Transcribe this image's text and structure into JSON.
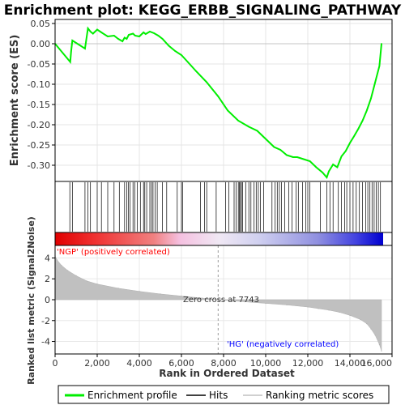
{
  "chart_data": {
    "type": "line",
    "title": "Enrichment plot: KEGG_ERBB_SIGNALING_PATHWAY",
    "top_panel": {
      "ylabel": "Enrichment score (ES)",
      "ylim": [
        -0.34,
        0.06
      ],
      "yticks": [
        0.05,
        0.0,
        -0.05,
        -0.1,
        -0.15,
        -0.2,
        -0.25,
        -0.3
      ],
      "ytick_labels": [
        "0.05",
        "0.00",
        "-0.05",
        "-0.10",
        "-0.15",
        "-0.20",
        "-0.25",
        "-0.30"
      ],
      "grid": true,
      "series": [
        {
          "name": "Enrichment profile",
          "color": "#00ee00",
          "x": [
            0,
            720,
            760,
            820,
            1420,
            1560,
            1680,
            1800,
            2000,
            2200,
            2500,
            2800,
            3000,
            3200,
            3300,
            3400,
            3500,
            3700,
            3800,
            4000,
            4200,
            4300,
            4500,
            4700,
            4900,
            5100,
            5400,
            5700,
            6000,
            6300,
            6700,
            7200,
            7743,
            8200,
            8700,
            9200,
            9600,
            10000,
            10400,
            10700,
            11000,
            11300,
            11500,
            11800,
            12100,
            12400,
            12700,
            12900,
            13000,
            13200,
            13400,
            13600,
            13800,
            14000,
            14200,
            14400,
            14600,
            14800,
            15000,
            15200,
            15400,
            15500
          ],
          "y": [
            0.0,
            -0.045,
            -0.02,
            0.008,
            -0.012,
            0.038,
            0.03,
            0.025,
            0.035,
            0.028,
            0.018,
            0.02,
            0.012,
            0.006,
            0.015,
            0.012,
            0.022,
            0.025,
            0.02,
            0.018,
            0.028,
            0.024,
            0.03,
            0.026,
            0.02,
            0.012,
            -0.005,
            -0.018,
            -0.028,
            -0.045,
            -0.068,
            -0.095,
            -0.13,
            -0.165,
            -0.19,
            -0.205,
            -0.215,
            -0.235,
            -0.255,
            -0.262,
            -0.275,
            -0.28,
            -0.28,
            -0.285,
            -0.29,
            -0.305,
            -0.318,
            -0.33,
            -0.315,
            -0.298,
            -0.305,
            -0.278,
            -0.265,
            -0.245,
            -0.228,
            -0.21,
            -0.19,
            -0.165,
            -0.135,
            -0.095,
            -0.055,
            0.0
          ]
        }
      ]
    },
    "hits_panel": {
      "name": "Hits",
      "hit_ranks": [
        700,
        820,
        1420,
        1560,
        1680,
        2000,
        2200,
        2500,
        2800,
        3050,
        3300,
        3400,
        3480,
        3560,
        3700,
        3780,
        3900,
        4050,
        4200,
        4260,
        4350,
        4500,
        4580,
        4650,
        4750,
        4850,
        5100,
        5300,
        5800,
        6000,
        6050,
        6900,
        7100,
        7200,
        7650,
        8100,
        8250,
        8500,
        8600,
        8700,
        8750,
        8800,
        8850,
        8900,
        9050,
        9200,
        9300,
        9450,
        9550,
        9650,
        9750,
        9900,
        10300,
        10450,
        10550,
        10650,
        10750,
        10900,
        11100,
        11250,
        11450,
        11550,
        11750,
        11900,
        12000,
        12100,
        12600,
        12900,
        13050,
        13200,
        13450,
        13600,
        13750,
        13850,
        14000,
        14150,
        14300,
        14450,
        14600,
        14750,
        14850,
        14950,
        15050,
        15150,
        15250,
        15350,
        15450
      ]
    },
    "color_bar": {
      "range": [
        0,
        15500
      ],
      "ngp_label": "'NGP' (positively correlated)",
      "hg_label": "'HG' (negatively correlated)",
      "ngp_color": "#ff0000",
      "hg_color": "#0000ff"
    },
    "metric_panel": {
      "ylabel": "Ranked list metric (Signal2Noise)",
      "ylim": [
        -5.2,
        5.2
      ],
      "yticks": [
        4,
        2,
        0,
        -2,
        -4
      ],
      "ytick_labels": [
        "4",
        "2",
        "0",
        "-2",
        "-4"
      ],
      "zero_cross_label": "Zero cross at 7743",
      "zero_cross": 7743,
      "fill_color": "#c0c0c0",
      "x": [
        0,
        100,
        300,
        600,
        1000,
        1500,
        2000,
        3000,
        4000,
        5000,
        6000,
        7000,
        7743,
        9000,
        10000,
        11000,
        12000,
        12500,
        13000,
        13500,
        14000,
        14500,
        14800,
        15000,
        15200,
        15400,
        15500
      ],
      "values": [
        4.2,
        3.8,
        3.3,
        2.8,
        2.3,
        1.8,
        1.5,
        1.1,
        0.8,
        0.55,
        0.35,
        0.15,
        0.0,
        -0.2,
        -0.35,
        -0.5,
        -0.7,
        -0.85,
        -1.0,
        -1.2,
        -1.5,
        -1.9,
        -2.3,
        -2.8,
        -3.4,
        -4.3,
        -4.9
      ]
    },
    "xlabel": "Rank in Ordered Dataset",
    "xlim": [
      0,
      16000
    ],
    "xticks": [
      0,
      2000,
      4000,
      6000,
      8000,
      10000,
      12000,
      14000,
      16000
    ],
    "xtick_labels": [
      "0",
      "2,000",
      "4,000",
      "6,000",
      "8,000",
      "10,000",
      "12,000",
      "14,000",
      "16,000"
    ],
    "legend": {
      "placement": "bottom",
      "items": [
        {
          "label": "Enrichment profile",
          "color": "#00ee00",
          "kind": "line"
        },
        {
          "label": "Hits",
          "color": "#000000",
          "kind": "line"
        },
        {
          "label": "Ranking metric scores",
          "color": "#c0c0c0",
          "kind": "line"
        }
      ]
    }
  }
}
